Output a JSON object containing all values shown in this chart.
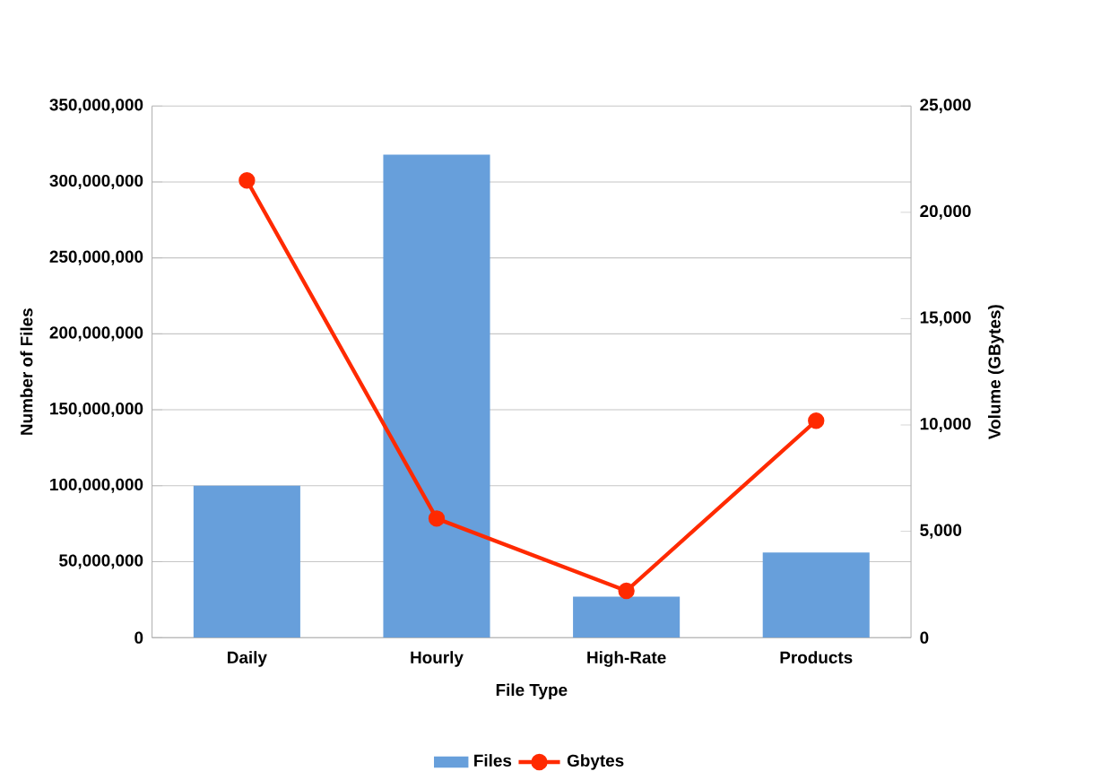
{
  "chart_data": {
    "type": "bar",
    "xlabel": "File Type",
    "ylabel": "Number of Files",
    "y2label": "Volume (GBytes)",
    "categories": [
      "Daily",
      "Hourly",
      "High-Rate",
      "Products"
    ],
    "series": [
      {
        "name": "Files",
        "color": "#679fdb",
        "values": [
          100000000,
          318000000,
          27000000,
          56000000
        ]
      },
      {
        "name": "Gbytes",
        "type": "line",
        "axis": "y2",
        "color": "#ff2a00",
        "values": [
          21500,
          5600,
          2200,
          10200
        ]
      }
    ],
    "ylim": [
      0,
      350000000
    ],
    "yticks": [
      {
        "value": 0,
        "label": "0"
      },
      {
        "value": 50000000,
        "label": "50,000,000"
      },
      {
        "value": 100000000,
        "label": "100,000,000"
      },
      {
        "value": 150000000,
        "label": "150,000,000"
      },
      {
        "value": 200000000,
        "label": "200,000,000"
      },
      {
        "value": 250000000,
        "label": "250,000,000"
      },
      {
        "value": 300000000,
        "label": "300,000,000"
      },
      {
        "value": 350000000,
        "label": "350,000,000"
      }
    ],
    "y2lim": [
      0,
      25000
    ],
    "y2ticks": [
      {
        "value": 0,
        "label": "0"
      },
      {
        "value": 5000,
        "label": "5,000"
      },
      {
        "value": 10000,
        "label": "10,000"
      },
      {
        "value": 15000,
        "label": "15,000"
      },
      {
        "value": 20000,
        "label": "20,000"
      },
      {
        "value": 25000,
        "label": "25,000"
      }
    ],
    "grid": "y",
    "legend": "bottom",
    "marker": "circle"
  }
}
